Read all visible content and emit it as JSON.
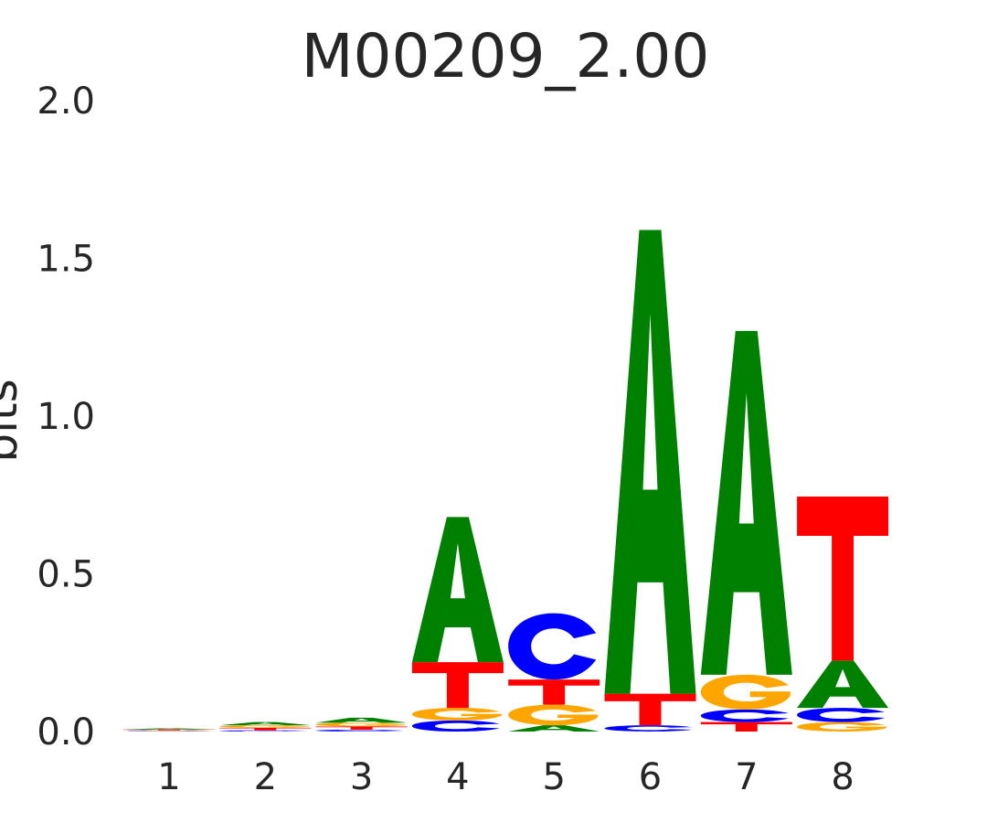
{
  "chart_data": {
    "type": "sequence-logo",
    "title": "M00209_2.00",
    "ylabel": "bits",
    "xlabel": "",
    "ylim": [
      0,
      2.0
    ],
    "yticks": [
      "0.0",
      "0.5",
      "1.0",
      "1.5",
      "2.0"
    ],
    "ytick_values": [
      0,
      0.5,
      1.0,
      1.5,
      2.0
    ],
    "positions": [
      "1",
      "2",
      "3",
      "4",
      "5",
      "6",
      "7",
      "8"
    ],
    "colors": {
      "A": "#008000",
      "C": "#0000ff",
      "G": "#ffa500",
      "T": "#ff0000"
    },
    "stacks": [
      [
        {
          "letter": "G",
          "bits": 0.002
        },
        {
          "letter": "C",
          "bits": 0.002
        },
        {
          "letter": "T",
          "bits": 0.003
        },
        {
          "letter": "A",
          "bits": 0.003
        }
      ],
      [
        {
          "letter": "C",
          "bits": 0.004
        },
        {
          "letter": "T",
          "bits": 0.008
        },
        {
          "letter": "G",
          "bits": 0.008
        },
        {
          "letter": "A",
          "bits": 0.01
        }
      ],
      [
        {
          "letter": "C",
          "bits": 0.006
        },
        {
          "letter": "T",
          "bits": 0.01
        },
        {
          "letter": "G",
          "bits": 0.012
        },
        {
          "letter": "A",
          "bits": 0.016
        }
      ],
      [
        {
          "letter": "C",
          "bits": 0.035
        },
        {
          "letter": "G",
          "bits": 0.04
        },
        {
          "letter": "T",
          "bits": 0.145
        },
        {
          "letter": "A",
          "bits": 0.46
        }
      ],
      [
        {
          "letter": "A",
          "bits": 0.02
        },
        {
          "letter": "G",
          "bits": 0.065
        },
        {
          "letter": "T",
          "bits": 0.08
        },
        {
          "letter": "C",
          "bits": 0.21
        }
      ],
      [
        {
          "letter": "C",
          "bits": 0.02
        },
        {
          "letter": "T",
          "bits": 0.1
        },
        {
          "letter": "A",
          "bits": 1.47
        }
      ],
      [
        {
          "letter": "T",
          "bits": 0.03
        },
        {
          "letter": "C",
          "bits": 0.04
        },
        {
          "letter": "G",
          "bits": 0.11
        },
        {
          "letter": "A",
          "bits": 1.09
        }
      ],
      [
        {
          "letter": "G",
          "bits": 0.03
        },
        {
          "letter": "C",
          "bits": 0.045
        },
        {
          "letter": "A",
          "bits": 0.15
        },
        {
          "letter": "T",
          "bits": 0.52
        }
      ]
    ]
  }
}
